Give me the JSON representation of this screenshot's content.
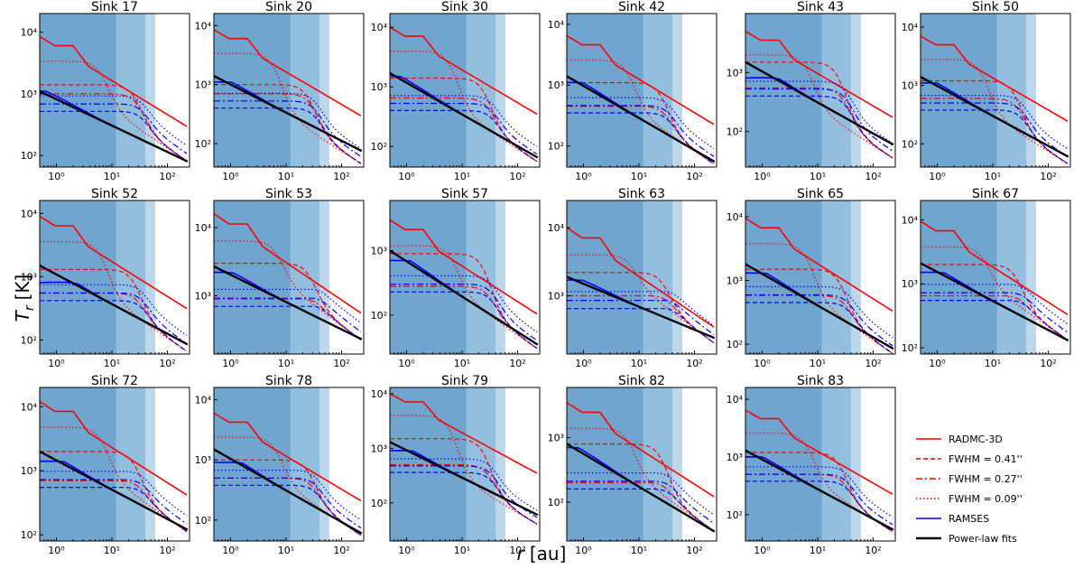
{
  "figure": {
    "ylabel_main": "T",
    "ylabel_sub": "r",
    "ylabel_unit": "[K]",
    "xlabel_main": "r",
    "xlabel_unit": "[au]"
  },
  "chart_data": {
    "type": "line",
    "x_scale": "log",
    "y_scale": "log",
    "xlim": [
      0.5,
      250
    ],
    "x_ticks": [
      1,
      10,
      100
    ],
    "x_tick_labels": [
      "10⁰",
      "10¹",
      "10²"
    ],
    "shaded_bands": [
      {
        "x_end": 12,
        "color": "#6fa5cf"
      },
      {
        "x_end": 40,
        "color": "#93bfdf"
      },
      {
        "x_end": 60,
        "color": "#bcd6ea"
      }
    ],
    "legend": {
      "location": "lower-right",
      "entries": [
        {
          "label": "RADMC-3D",
          "color": "#ff0000",
          "style": "solid"
        },
        {
          "label": "FWHM = 0.41''",
          "color": "#ff0000",
          "style": "dashed"
        },
        {
          "label": "FWHM = 0.27''",
          "color": "#ff0000",
          "style": "dashdot"
        },
        {
          "label": "FWHM = 0.09''",
          "color": "#ff0000",
          "style": "dotted"
        },
        {
          "label": "RAMSES",
          "color": "#0000ff",
          "style": "solid"
        },
        {
          "label": "Power-law fits",
          "color": "#000000",
          "style": "solid"
        }
      ]
    },
    "panels": [
      {
        "title": "Sink 17",
        "ylim": [
          65,
          20000
        ],
        "y_ticks": [
          100,
          1000,
          10000
        ],
        "radmc": 8500,
        "bh": 1400,
        "bm": 1000,
        "bl": 520,
        "ramses": 1100,
        "fit": [
          1100,
          80
        ],
        "fit_outer": 80
      },
      {
        "title": "Sink 20",
        "ylim": [
          40,
          16000
        ],
        "y_ticks": [
          100,
          1000,
          10000
        ],
        "radmc": 8500,
        "bh": 1000,
        "bm": 700,
        "bl": 400,
        "ramses": 1100,
        "fit": [
          1400,
          75
        ],
        "fit_outer": 45
      },
      {
        "title": "Sink 30",
        "ylim": [
          45,
          17000
        ],
        "y_ticks": [
          100,
          1000,
          10000
        ],
        "radmc": 10000,
        "bh": 1400,
        "bm": 650,
        "bl": 400,
        "ramses": 1500,
        "fit": [
          1700,
          65
        ],
        "fit_outer": 55
      },
      {
        "title": "Sink 42",
        "ylim": [
          45,
          15000
        ],
        "y_ticks": [
          100,
          1000,
          10000
        ],
        "radmc": 6500,
        "bh": 1100,
        "bm": 450,
        "bl": 350,
        "ramses": 1100,
        "fit": [
          1400,
          55
        ],
        "fit_outer": 50
      },
      {
        "title": "Sink 43",
        "ylim": [
          25,
          10000
        ],
        "y_ticks": [
          100,
          1000
        ],
        "radmc": 5000,
        "bh": 1500,
        "bm": 550,
        "bl": 400,
        "ramses": 800,
        "fit": [
          1500,
          60
        ],
        "fit_outer": 35
      },
      {
        "title": "Sink 50",
        "ylim": [
          40,
          17000
        ],
        "y_ticks": [
          100,
          1000,
          10000
        ],
        "radmc": 7000,
        "bh": 1200,
        "bm": 600,
        "bl": 380,
        "ramses": 1100,
        "fit": [
          1400,
          60
        ],
        "fit_outer": 45
      },
      {
        "title": "Sink 52",
        "ylim": [
          60,
          16000
        ],
        "y_ticks": [
          100,
          1000,
          10000
        ],
        "radmc": 9000,
        "bh": 1300,
        "bm": 550,
        "bl": 420,
        "ramses": 800,
        "fit": [
          1500,
          85
        ],
        "fit_outer": 65
      },
      {
        "title": "Sink 53",
        "ylim": [
          140,
          25000
        ],
        "y_ticks": [
          1000,
          10000
        ],
        "radmc": 16000,
        "bh": 3000,
        "bm": 900,
        "bl": 700,
        "ramses": 2200,
        "fit": [
          2700,
          230
        ],
        "fit_outer": 220
      },
      {
        "title": "Sink 57",
        "ylim": [
          25,
          6000
        ],
        "y_ticks": [
          100,
          1000
        ],
        "radmc": 3000,
        "bh": 900,
        "bm": 280,
        "bl": 230,
        "ramses": 700,
        "fit": [
          1000,
          35
        ],
        "fit_outer": 30
      },
      {
        "title": "Sink 63",
        "ylim": [
          140,
          25000
        ],
        "y_ticks": [
          1000,
          10000
        ],
        "radmc": 10000,
        "bh": 2200,
        "bm": 1000,
        "bl": 650,
        "ramses": 1700,
        "fit": [
          1900,
          240
        ],
        "fit_outer": 200
      },
      {
        "title": "Sink 65",
        "ylim": [
          70,
          18000
        ],
        "y_ticks": [
          100,
          1000,
          10000
        ],
        "radmc": 9500,
        "bh": 1500,
        "bm": 580,
        "bl": 450,
        "ramses": 1300,
        "fit": [
          1800,
          85
        ],
        "fit_outer": 70
      },
      {
        "title": "Sink 67",
        "ylim": [
          80,
          20000
        ],
        "y_ticks": [
          100,
          1000,
          10000
        ],
        "radmc": 9500,
        "bh": 2000,
        "bm": 650,
        "bl": 550,
        "ramses": 1500,
        "fit": [
          2100,
          130
        ],
        "fit_outer": 130
      },
      {
        "title": "Sink 72",
        "ylim": [
          80,
          20000
        ],
        "y_ticks": [
          100,
          1000,
          10000
        ],
        "radmc": 12000,
        "bh": 2000,
        "bm": 700,
        "bl": 550,
        "ramses": 1400,
        "fit": [
          2000,
          120
        ],
        "fit_outer": 110
      },
      {
        "title": "Sink 78",
        "ylim": [
          45,
          16000
        ],
        "y_ticks": [
          100,
          1000,
          10000
        ],
        "radmc": 6000,
        "bh": 1000,
        "bm": 500,
        "bl": 380,
        "ramses": 900,
        "fit": [
          1500,
          60
        ],
        "fit_outer": 55
      },
      {
        "title": "Sink 79",
        "ylim": [
          20,
          13000
        ],
        "y_ticks": [
          100,
          1000,
          10000
        ],
        "radmc": 10000,
        "bh": 1500,
        "bm": 500,
        "bl": 360,
        "ramses": 900,
        "fit": [
          1300,
          60
        ],
        "fit_outer": 40
      },
      {
        "title": "Sink 82",
        "ylim": [
          25,
          6000
        ],
        "y_ticks": [
          100,
          1000
        ],
        "radmc": 3500,
        "bh": 800,
        "bm": 200,
        "bl": 160,
        "ramses": 700,
        "fit": [
          800,
          35
        ],
        "fit_outer": 35
      },
      {
        "title": "Sink 83",
        "ylim": [
          35,
          16000
        ],
        "y_ticks": [
          100,
          1000,
          10000
        ],
        "radmc": 6500,
        "bh": 1200,
        "bm": 500,
        "bl": 380,
        "ramses": 1000,
        "fit": [
          1300,
          55
        ],
        "fit_outer": 50
      }
    ]
  }
}
